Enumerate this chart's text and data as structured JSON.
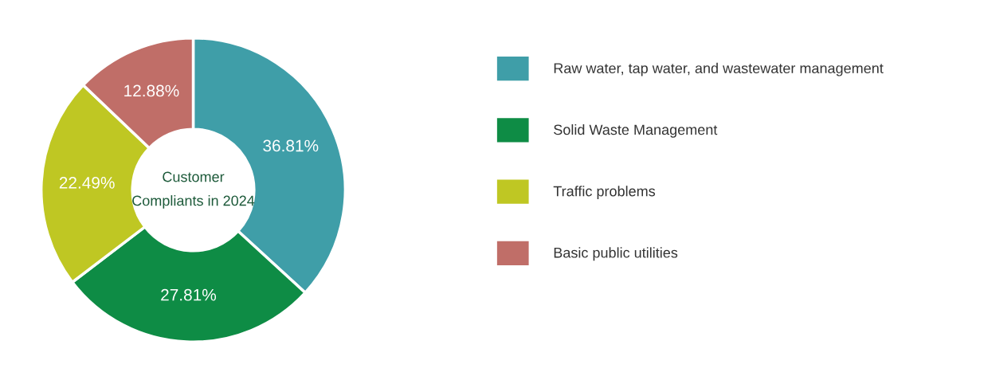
{
  "chart_data": {
    "type": "donut",
    "title": "Customer\nCompliants in 2024",
    "categories": [
      "Raw water, tap water, and wastewater management",
      "Solid Waste Management",
      "Traffic problems",
      "Basic public utilities"
    ],
    "values": [
      36.81,
      27.81,
      22.49,
      12.88
    ],
    "colors": [
      "#3f9ea8",
      "#0e8c45",
      "#bfc723",
      "#c06e68"
    ],
    "value_labels": [
      "36.81%",
      "27.81%",
      "22.49%",
      "12.88%"
    ],
    "legend": "right"
  }
}
